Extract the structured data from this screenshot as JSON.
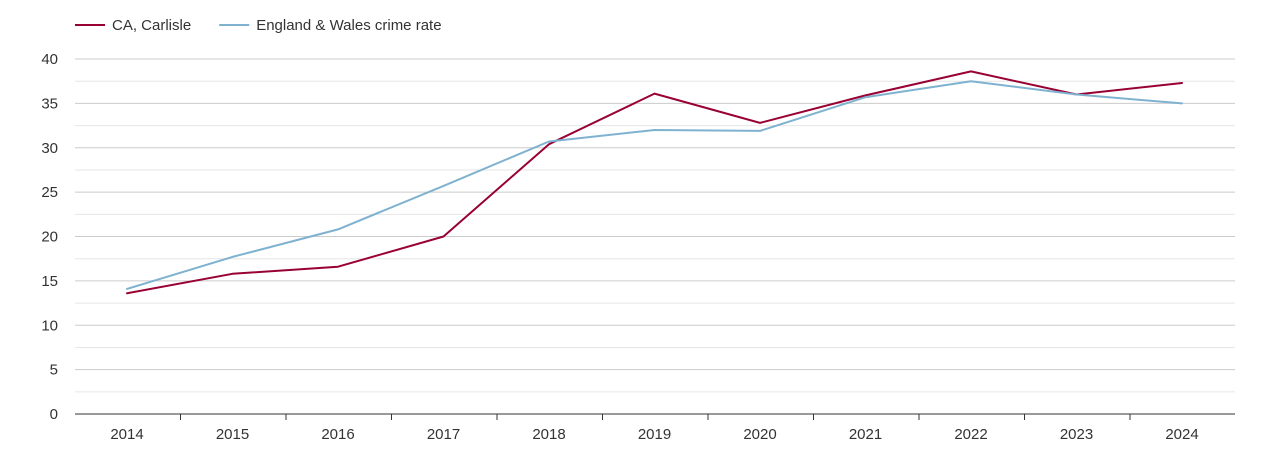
{
  "chart_data": {
    "type": "line",
    "title": "",
    "xlabel": "",
    "ylabel": "",
    "categories": [
      "2014",
      "2015",
      "2016",
      "2017",
      "2018",
      "2019",
      "2020",
      "2021",
      "2022",
      "2023",
      "2024"
    ],
    "ylim": [
      0,
      40
    ],
    "yticks": [
      0,
      5,
      10,
      15,
      20,
      25,
      30,
      35,
      40
    ],
    "grid": true,
    "legend_position": "top-left",
    "series": [
      {
        "name": "CA, Carlisle",
        "color": "#990033",
        "values": [
          13.6,
          15.8,
          16.6,
          20.0,
          30.4,
          36.1,
          32.8,
          35.9,
          38.6,
          36.0,
          37.3
        ]
      },
      {
        "name": "England & Wales crime rate",
        "color": "#7eb2d0",
        "values": [
          14.1,
          17.7,
          20.8,
          25.7,
          30.7,
          32.0,
          31.9,
          35.7,
          37.5,
          36.0,
          35.0
        ]
      }
    ]
  }
}
